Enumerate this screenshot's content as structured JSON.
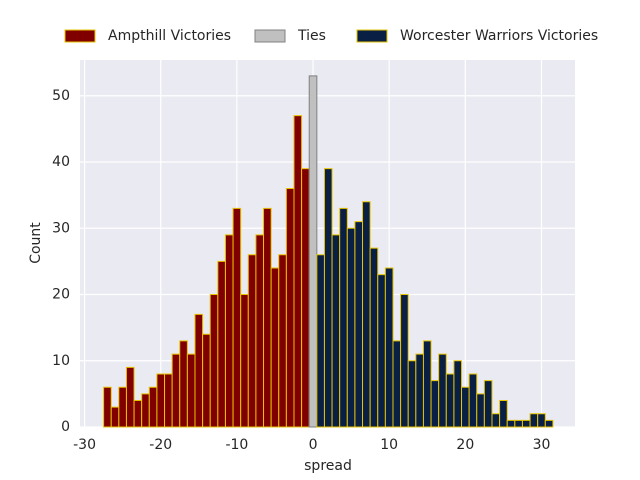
{
  "chart_data": {
    "type": "histogram",
    "x_label": "spread",
    "y_label": "Count",
    "grid": true,
    "xlim": [
      -30.6,
      34.4
    ],
    "ylim": [
      0,
      55.4
    ],
    "xticks": [
      -30,
      -20,
      -10,
      0,
      10,
      20,
      30
    ],
    "yticks": [
      0,
      10,
      20,
      30,
      40,
      50
    ],
    "series": [
      {
        "name": "Ampthill Victories",
        "color": "#800000",
        "edgecolor": "#e6c300",
        "bins": [
          -27.5,
          -26.5,
          -25.5,
          -24.5,
          -23.5,
          -22.5,
          -21.5,
          -20.5,
          -19.5,
          -18.5,
          -17.5,
          -16.5,
          -15.5,
          -14.5,
          -13.5,
          -12.5,
          -11.5,
          -10.5,
          -9.5,
          -8.5,
          -7.5,
          -6.5,
          -5.5,
          -4.5,
          -3.5,
          -2.5,
          -1.5,
          -0.5
        ],
        "values": [
          6,
          3,
          6,
          9,
          4,
          5,
          6,
          8,
          8,
          11,
          13,
          11,
          17,
          14,
          20,
          25,
          29,
          33,
          20,
          26,
          29,
          33,
          24,
          26,
          36,
          47,
          39
        ]
      },
      {
        "name": "Ties",
        "color": "#c0c0c0",
        "edgecolor": "#808080",
        "bins": [
          -0.5,
          0.5
        ],
        "values": [
          53
        ]
      },
      {
        "name": "Worcester Warriors Victories",
        "color": "#0a1f44",
        "edgecolor": "#e6c300",
        "bins": [
          0.5,
          1.5,
          2.5,
          3.5,
          4.5,
          5.5,
          6.5,
          7.5,
          8.5,
          9.5,
          10.5,
          11.5,
          12.5,
          13.5,
          14.5,
          15.5,
          16.5,
          17.5,
          18.5,
          19.5,
          20.5,
          21.5,
          22.5,
          23.5,
          24.5,
          25.5,
          26.5,
          27.5,
          28.5,
          29.5,
          30.5,
          31.5
        ],
        "values": [
          26,
          39,
          29,
          33,
          30,
          31,
          34,
          27,
          23,
          24,
          13,
          20,
          10,
          11,
          13,
          7,
          11,
          8,
          10,
          6,
          8,
          5,
          7,
          2,
          4,
          1,
          1,
          1,
          2,
          2,
          1
        ]
      }
    ]
  }
}
